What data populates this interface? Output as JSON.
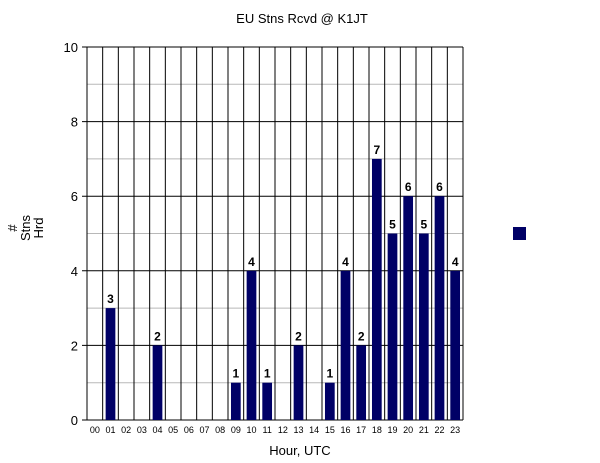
{
  "chart_data": {
    "type": "bar",
    "title": "EU Stns Rcvd @ K1JT",
    "xlabel": "Hour, UTC",
    "ylabel_lines": [
      "#",
      "Stns",
      "Hrd"
    ],
    "ylim": [
      0,
      10
    ],
    "yticks": [
      0,
      2,
      4,
      6,
      8,
      10
    ],
    "categories": [
      "00",
      "01",
      "02",
      "03",
      "04",
      "05",
      "06",
      "07",
      "08",
      "09",
      "10",
      "11",
      "12",
      "13",
      "14",
      "15",
      "16",
      "17",
      "18",
      "19",
      "20",
      "21",
      "22",
      "23"
    ],
    "values": [
      0,
      3,
      0,
      0,
      2,
      0,
      0,
      0,
      0,
      1,
      4,
      1,
      0,
      2,
      0,
      1,
      4,
      2,
      7,
      5,
      6,
      5,
      6,
      4
    ],
    "grid": true,
    "legend": "right",
    "bar_color": "#000066"
  }
}
